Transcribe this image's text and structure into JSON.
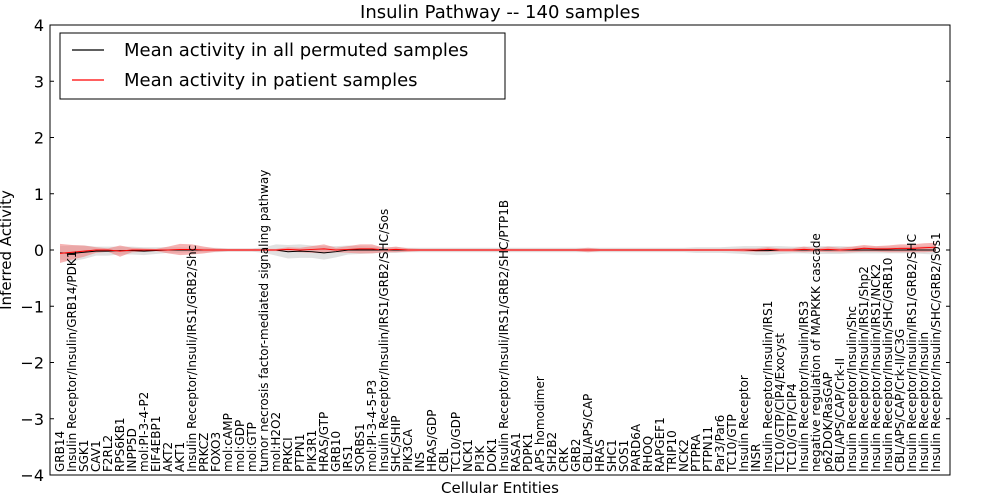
{
  "chart_data": {
    "type": "line",
    "title": "Insulin Pathway -- 140 samples",
    "xlabel": "Cellular Entities",
    "ylabel": "Inferred Activity",
    "ylim": [
      -4,
      4
    ],
    "yticks": [
      "−4",
      "−3",
      "−2",
      "−1",
      "0",
      "1",
      "2",
      "3",
      "4"
    ],
    "grid": false,
    "legend_position": "top-left",
    "colors": {
      "permuted": "#000000",
      "patient": "#ff0000",
      "permuted_band": "#c8c8c8",
      "patient_band": "#f08080"
    },
    "categories": [
      "GRB14",
      "Insulin Receptor/Insulin/GRB14/PDK1",
      "SGK1",
      "CAV1",
      "F2RL2",
      "RPS6KB1",
      "INPP5D",
      "mol:PI-3-4-P2",
      "EIF4EBP1",
      "AKT2",
      "AKT1",
      "Insulin Receptor/Insuli/IRS1/GRB2/Shc",
      "PRKCZ",
      "FOXO3",
      "mol:cAMP",
      "mol:GDP",
      "mol:GTP",
      "tumor necrosis factor-mediated signaling pathway",
      "mol:H2O2",
      "PRKCI",
      "PTPN1",
      "PIK3R1",
      "HRAS/GTP",
      "GRB10",
      "IRS1",
      "SORBS1",
      "mol:PI-3-4-5-P3",
      "Insulin Receptor/Insulin/IRS1/GRB2/SHC/Sos",
      "SHC/SHIP",
      "PIK3CA",
      "INS",
      "HRAS/GDP",
      "CBL",
      "TC10/GDP",
      "NCK1",
      "PI3K",
      "DOK1",
      "Insulin Receptor/Insuli/IRS1/GRB2/SHC/PTP1B",
      "RASA1",
      "PDPK1",
      "APS homodimer",
      "SH2B2",
      "CRK",
      "GRB2",
      "CBL/APS/CAP",
      "HRAS",
      "SHC1",
      "SOS1",
      "PARD6A",
      "RHOQ",
      "RAPGEF1",
      "TRIP10",
      "NCK2",
      "PTPRA",
      "PTPN11",
      "Par3/Par6",
      "TC10/GTP",
      "Insulin Receptor",
      "INSR",
      "Insulin Receptor/Insulin/IRS1",
      "TC10/GTP/CIP4/Exocyst",
      "TC10/GTP/CIP4",
      "Insulin Receptor/Insulin/IRS3",
      "negative regulation of MAPKKK cascade",
      "p62DOK/RasGAP",
      "CBL/APS/CAP/Crk-II",
      "Insulin Receptor/Insulin/Shc",
      "Insulin Receptor/Insulin/IRS1/Shp2",
      "Insulin Receptor/Insulin/IRS1/NCK2",
      "Insulin Receptor/Insulin/SHC/GRB10",
      "CBL/APS/CAP/Crk-II/C3G",
      "Insulin Receptor/Insulin/IRS1/GRB2/SHC",
      "Insulin Receptor/Insulin",
      "Insulin Receptor/Insulin/SHC/GRB2/Sos1"
    ],
    "series": [
      {
        "name": "Mean activity in all permuted samples",
        "values": [
          -0.05,
          -0.06,
          -0.04,
          -0.02,
          -0.02,
          -0.01,
          -0.01,
          -0.02,
          -0.01,
          0.0,
          0.0,
          0.0,
          0.0,
          0.0,
          0.0,
          0.0,
          0.0,
          0.0,
          0.0,
          -0.03,
          -0.02,
          -0.03,
          -0.05,
          -0.03,
          0.0,
          0.0,
          0.0,
          0.0,
          0.0,
          0.0,
          0.0,
          0.0,
          0.0,
          0.0,
          0.0,
          0.0,
          0.0,
          0.0,
          0.0,
          0.0,
          0.0,
          0.0,
          0.0,
          0.0,
          0.0,
          0.0,
          0.0,
          0.0,
          0.0,
          0.0,
          0.0,
          0.0,
          0.0,
          0.0,
          0.0,
          0.0,
          0.0,
          0.0,
          -0.01,
          -0.01,
          0.0,
          0.0,
          0.0,
          0.0,
          0.0,
          0.0,
          0.0,
          0.0,
          0.0,
          0.0,
          0.0,
          0.0,
          0.0,
          0.0
        ],
        "band": [
          0.12,
          0.14,
          0.12,
          0.08,
          0.08,
          0.07,
          0.07,
          0.07,
          0.06,
          0.05,
          0.05,
          0.04,
          0.04,
          0.04,
          0.03,
          0.03,
          0.03,
          0.05,
          0.1,
          0.12,
          0.12,
          0.11,
          0.12,
          0.1,
          0.08,
          0.07,
          0.06,
          0.05,
          0.05,
          0.04,
          0.04,
          0.04,
          0.04,
          0.04,
          0.04,
          0.04,
          0.04,
          0.04,
          0.04,
          0.04,
          0.04,
          0.04,
          0.04,
          0.04,
          0.04,
          0.04,
          0.04,
          0.04,
          0.04,
          0.04,
          0.04,
          0.04,
          0.04,
          0.05,
          0.05,
          0.05,
          0.06,
          0.07,
          0.08,
          0.08,
          0.07,
          0.06,
          0.06,
          0.07,
          0.07,
          0.07,
          0.06,
          0.06,
          0.06,
          0.06,
          0.06,
          0.06,
          0.07,
          0.08
        ]
      },
      {
        "name": "Mean activity in patient samples",
        "values": [
          -0.06,
          -0.04,
          -0.02,
          0.0,
          0.0,
          -0.02,
          0.0,
          0.0,
          0.0,
          0.0,
          0.01,
          0.01,
          0.0,
          0.0,
          0.0,
          0.0,
          0.0,
          0.0,
          0.0,
          0.01,
          0.0,
          0.01,
          0.02,
          0.0,
          0.01,
          0.02,
          0.02,
          0.0,
          0.01,
          0.0,
          0.0,
          0.0,
          0.0,
          0.0,
          0.0,
          0.0,
          0.0,
          0.0,
          0.0,
          0.0,
          0.0,
          0.0,
          0.0,
          0.0,
          0.0,
          0.0,
          0.0,
          0.0,
          0.0,
          0.0,
          0.0,
          0.0,
          0.0,
          0.0,
          0.0,
          0.0,
          0.0,
          0.0,
          0.0,
          0.01,
          0.0,
          0.0,
          0.01,
          0.0,
          0.01,
          0.0,
          0.01,
          0.03,
          0.02,
          0.02,
          0.03,
          0.03,
          0.04,
          0.05
        ],
        "band": [
          0.17,
          0.13,
          0.1,
          0.05,
          0.03,
          0.1,
          0.04,
          0.03,
          0.02,
          0.06,
          0.1,
          0.09,
          0.06,
          0.03,
          0.02,
          0.02,
          0.02,
          0.02,
          0.02,
          0.04,
          0.04,
          0.06,
          0.08,
          0.04,
          0.06,
          0.08,
          0.08,
          0.04,
          0.05,
          0.03,
          0.02,
          0.02,
          0.02,
          0.02,
          0.02,
          0.02,
          0.02,
          0.02,
          0.02,
          0.02,
          0.02,
          0.02,
          0.02,
          0.02,
          0.04,
          0.02,
          0.02,
          0.02,
          0.02,
          0.02,
          0.02,
          0.02,
          0.02,
          0.02,
          0.02,
          0.02,
          0.02,
          0.03,
          0.03,
          0.04,
          0.03,
          0.03,
          0.05,
          0.03,
          0.05,
          0.04,
          0.05,
          0.06,
          0.05,
          0.06,
          0.07,
          0.07,
          0.08,
          0.08
        ]
      }
    ]
  }
}
